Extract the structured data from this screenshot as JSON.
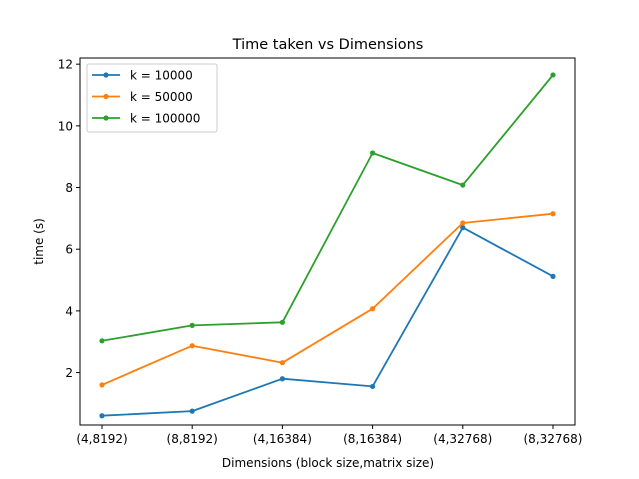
{
  "chart_data": {
    "type": "line",
    "title": "Time taken vs Dimensions",
    "xlabel": "Dimensions (block size,matrix size)",
    "ylabel": "time (s)",
    "categories": [
      "(4,8192)",
      "(8,8192)",
      "(4,16384)",
      "(8,16384)",
      "(4,32768)",
      "(8,32768)"
    ],
    "yticks": [
      "2",
      "4",
      "6",
      "8",
      "10",
      "12"
    ],
    "ylim": [
      0.3,
      12.2
    ],
    "grid": false,
    "legend_position": "top-left",
    "series": [
      {
        "name": "k = 10000",
        "color": "#1f77b4",
        "values": [
          0.6,
          0.75,
          1.8,
          1.55,
          6.7,
          5.12
        ]
      },
      {
        "name": "k = 50000",
        "color": "#ff7f0e",
        "values": [
          1.6,
          2.87,
          2.32,
          4.07,
          6.85,
          7.15
        ]
      },
      {
        "name": "k = 100000",
        "color": "#2ca02c",
        "values": [
          3.03,
          3.53,
          3.63,
          9.12,
          8.08,
          11.65
        ]
      }
    ]
  }
}
